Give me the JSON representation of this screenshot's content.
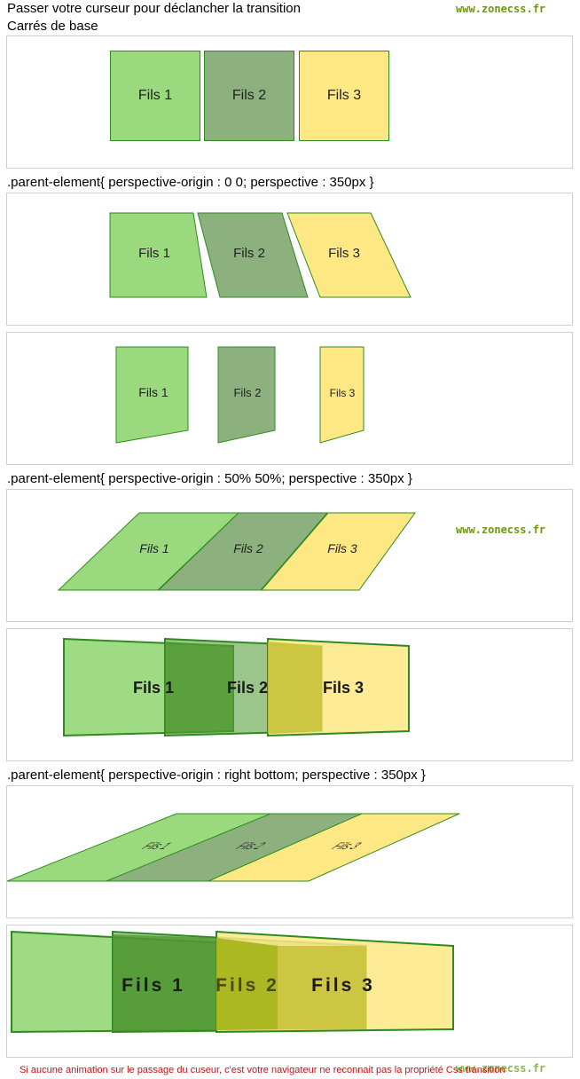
{
  "header": {
    "instruction": "Passer votre curseur pour déclancher la transition",
    "subtitle": "Carrés de base",
    "brand": "www.zonecss.fr"
  },
  "children": [
    "Fils 1",
    "Fils 2",
    "Fils 3"
  ],
  "colors": {
    "fils1": "#9ad97e",
    "fils2": "#8db07f",
    "fils3": "#fde884",
    "border": "#2e8b1f",
    "brand": "#6a9a08",
    "warning": "#cc1111"
  },
  "sections": {
    "origin_0_0": ".parent-element{ perspective-origin : 0 0; perspective : 350px }",
    "origin_50_50": ".parent-element{ perspective-origin : 50% 50%; perspective : 350px }",
    "origin_right_bottom": ".parent-element{ perspective-origin : right bottom; perspective : 350px }"
  },
  "footer": {
    "warning": "Si aucune animation sur le passage du cuseur, c'est votre navigateur ne reconnait pas la propriété Css transition",
    "brand": "www.zonecss.fr"
  }
}
